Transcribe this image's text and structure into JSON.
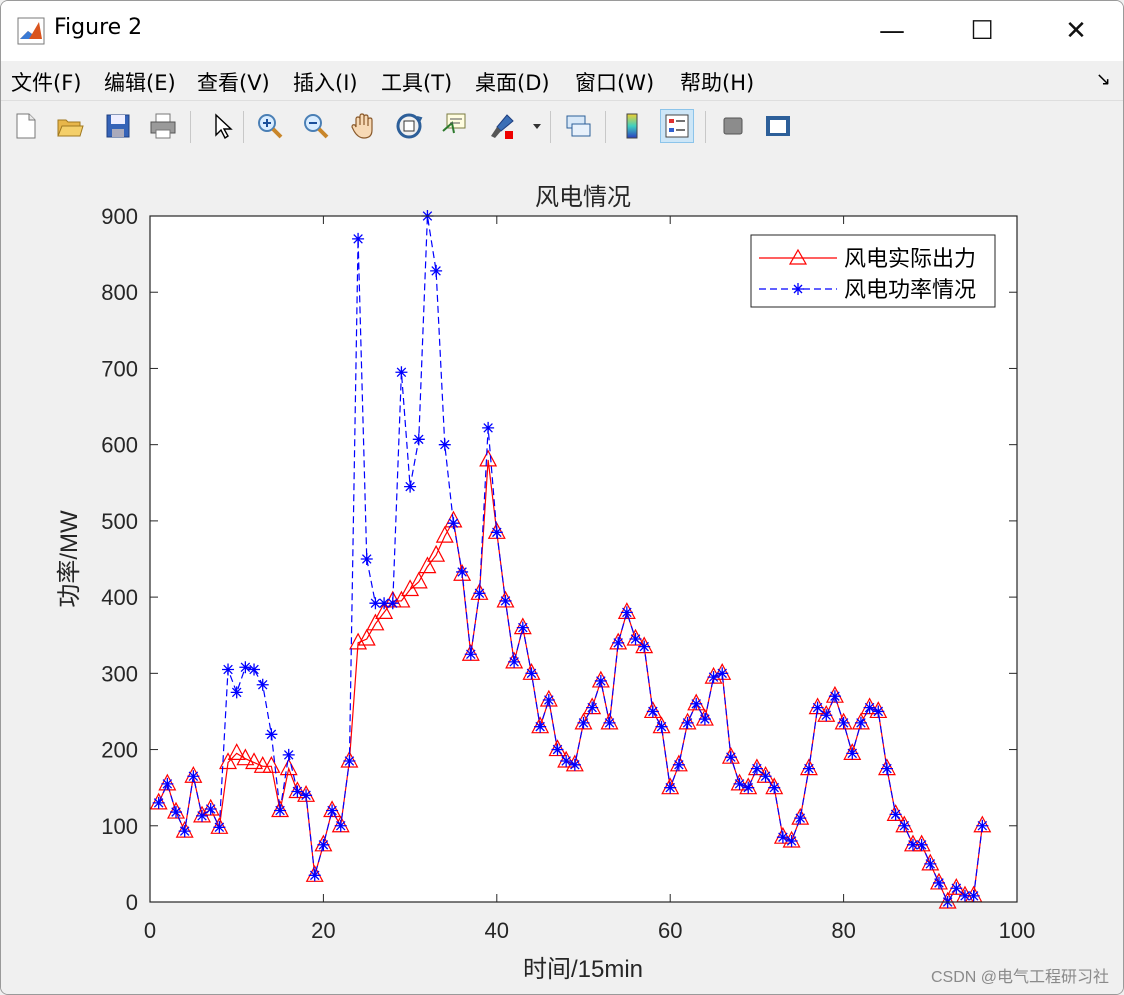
{
  "window": {
    "title": "Figure 2"
  },
  "window_controls": {
    "minimize": "—",
    "maximize": "☐",
    "close": "✕"
  },
  "menu": [
    {
      "label": "文件(F)"
    },
    {
      "label": "编辑(E)"
    },
    {
      "label": "查看(V)"
    },
    {
      "label": "插入(I)"
    },
    {
      "label": "工具(T)"
    },
    {
      "label": "桌面(D)"
    },
    {
      "label": "窗口(W)"
    },
    {
      "label": "帮助(H)"
    }
  ],
  "toolbar": {
    "icons": [
      "new-figure-icon",
      "open-file-icon",
      "save-icon",
      "print-icon",
      "pointer-icon",
      "zoom-in-icon",
      "zoom-out-icon",
      "pan-hand-icon",
      "rotate-3d-icon",
      "data-cursor-icon",
      "brush-icon",
      "link-plot-icon",
      "colorbar-icon",
      "legend-icon",
      "hide-plot-tools-icon",
      "show-plot-tools-icon"
    ]
  },
  "watermark": "CSDN @电气工程研习社",
  "chart_data": {
    "type": "line",
    "title": "风电情况",
    "xlabel": "时间/15min",
    "ylabel": "功率/MW",
    "xlim": [
      0,
      100
    ],
    "ylim": [
      0,
      900
    ],
    "xticks": [
      0,
      20,
      40,
      60,
      80,
      100
    ],
    "yticks": [
      0,
      100,
      200,
      300,
      400,
      500,
      600,
      700,
      800,
      900
    ],
    "grid": false,
    "legend_position": "top-right",
    "x": [
      1,
      2,
      3,
      4,
      5,
      6,
      7,
      8,
      9,
      10,
      11,
      12,
      13,
      14,
      15,
      16,
      17,
      18,
      19,
      20,
      21,
      22,
      23,
      24,
      25,
      26,
      27,
      28,
      29,
      30,
      31,
      32,
      33,
      34,
      35,
      36,
      37,
      38,
      39,
      40,
      41,
      42,
      43,
      44,
      45,
      46,
      47,
      48,
      49,
      50,
      51,
      52,
      53,
      54,
      55,
      56,
      57,
      58,
      59,
      60,
      61,
      62,
      63,
      64,
      65,
      66,
      67,
      68,
      69,
      70,
      71,
      72,
      73,
      74,
      75,
      76,
      77,
      78,
      79,
      80,
      81,
      82,
      83,
      84,
      85,
      86,
      87,
      88,
      89,
      90,
      91,
      92,
      93,
      94,
      95,
      96
    ],
    "series": [
      {
        "name": "风电实际出力",
        "color": "#ff0000",
        "line": "solid",
        "marker": "triangle",
        "values": [
          130,
          155,
          118,
          93,
          165,
          113,
          122,
          98,
          183,
          195,
          188,
          183,
          178,
          178,
          120,
          175,
          145,
          140,
          35,
          75,
          120,
          100,
          185,
          340,
          345,
          365,
          380,
          395,
          395,
          410,
          420,
          440,
          455,
          480,
          500,
          430,
          325,
          405,
          580,
          485,
          395,
          315,
          360,
          300,
          230,
          265,
          200,
          185,
          180,
          235,
          255,
          290,
          235,
          340,
          380,
          345,
          335,
          250,
          230,
          150,
          180,
          235,
          260,
          240,
          295,
          300,
          190,
          155,
          150,
          175,
          165,
          150,
          85,
          80,
          110,
          175,
          255,
          245,
          270,
          235,
          195,
          235,
          255,
          250,
          175,
          115,
          100,
          75,
          75,
          50,
          25,
          0,
          18,
          8,
          8,
          100
        ]
      },
      {
        "name": "风电功率情况",
        "color": "#0000ff",
        "line": "dashed",
        "marker": "star",
        "values": [
          130,
          155,
          118,
          93,
          165,
          113,
          122,
          98,
          305,
          275,
          308,
          305,
          285,
          220,
          120,
          193,
          145,
          140,
          35,
          75,
          120,
          100,
          185,
          870,
          450,
          392,
          392,
          392,
          695,
          545,
          607,
          900,
          828,
          600,
          497,
          433,
          325,
          405,
          622,
          485,
          395,
          315,
          360,
          300,
          230,
          265,
          200,
          185,
          180,
          235,
          255,
          290,
          235,
          340,
          380,
          345,
          335,
          250,
          230,
          150,
          180,
          235,
          260,
          240,
          295,
          300,
          190,
          155,
          150,
          175,
          165,
          150,
          85,
          80,
          110,
          175,
          255,
          245,
          270,
          235,
          195,
          235,
          255,
          250,
          175,
          115,
          100,
          75,
          75,
          50,
          25,
          0,
          18,
          8,
          8,
          100
        ]
      }
    ]
  }
}
